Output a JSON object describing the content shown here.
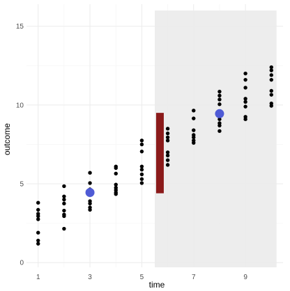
{
  "chart_data": {
    "type": "scatter",
    "xlabel": "time",
    "ylabel": "outcome",
    "xlim": [
      0.55,
      10.45
    ],
    "ylim": [
      -0.3,
      16.4
    ],
    "x_ticks": [
      1,
      3,
      5,
      7,
      9
    ],
    "x_tick_labels": [
      "1",
      "3",
      "5",
      "7",
      "9"
    ],
    "y_ticks": [
      0,
      5,
      10,
      15
    ],
    "y_tick_labels": [
      "0",
      "5",
      "10",
      "15"
    ],
    "grid": true,
    "background_band": {
      "x_from": 5.5,
      "x_to": 10.2,
      "y_from": -0.3,
      "y_to": 16.0,
      "color": "#ebebeb"
    },
    "segment": {
      "x": 5.7,
      "y_from": 4.4,
      "y_to": 9.5,
      "color": "#8b1a1a"
    },
    "highlight_points": [
      {
        "x": 3,
        "y": 4.45,
        "color": "#4f5bd5"
      },
      {
        "x": 8,
        "y": 9.45,
        "color": "#4f5bd5"
      }
    ],
    "point_color": "#000000",
    "points": [
      {
        "x": 1,
        "y": 3.8
      },
      {
        "x": 1,
        "y": 3.35
      },
      {
        "x": 1,
        "y": 3.1
      },
      {
        "x": 1,
        "y": 2.95
      },
      {
        "x": 1,
        "y": 2.75
      },
      {
        "x": 1,
        "y": 1.9
      },
      {
        "x": 1,
        "y": 1.4
      },
      {
        "x": 1,
        "y": 1.2
      },
      {
        "x": 2,
        "y": 4.85
      },
      {
        "x": 2,
        "y": 4.2
      },
      {
        "x": 2,
        "y": 4.0
      },
      {
        "x": 2,
        "y": 3.75
      },
      {
        "x": 2,
        "y": 3.3
      },
      {
        "x": 2,
        "y": 3.05
      },
      {
        "x": 2,
        "y": 2.95
      },
      {
        "x": 2,
        "y": 2.15
      },
      {
        "x": 3,
        "y": 5.7
      },
      {
        "x": 3,
        "y": 5.05
      },
      {
        "x": 3,
        "y": 4.65
      },
      {
        "x": 3,
        "y": 4.3
      },
      {
        "x": 3,
        "y": 3.9
      },
      {
        "x": 3,
        "y": 3.75
      },
      {
        "x": 3,
        "y": 3.5
      },
      {
        "x": 3,
        "y": 3.35
      },
      {
        "x": 4,
        "y": 6.1
      },
      {
        "x": 4,
        "y": 6.0
      },
      {
        "x": 4,
        "y": 5.65
      },
      {
        "x": 4,
        "y": 4.95
      },
      {
        "x": 4,
        "y": 4.75
      },
      {
        "x": 4,
        "y": 4.6
      },
      {
        "x": 4,
        "y": 4.45
      },
      {
        "x": 4,
        "y": 4.35
      },
      {
        "x": 5,
        "y": 7.75
      },
      {
        "x": 5,
        "y": 7.5
      },
      {
        "x": 5,
        "y": 7.05
      },
      {
        "x": 5,
        "y": 6.1
      },
      {
        "x": 5,
        "y": 5.9
      },
      {
        "x": 5,
        "y": 5.6
      },
      {
        "x": 5,
        "y": 5.3
      },
      {
        "x": 5,
        "y": 5.05
      },
      {
        "x": 6,
        "y": 8.5
      },
      {
        "x": 6,
        "y": 8.2
      },
      {
        "x": 6,
        "y": 7.95
      },
      {
        "x": 6,
        "y": 7.75
      },
      {
        "x": 6,
        "y": 7.0
      },
      {
        "x": 6,
        "y": 6.8
      },
      {
        "x": 6,
        "y": 6.5
      },
      {
        "x": 6,
        "y": 6.2
      },
      {
        "x": 7,
        "y": 9.65
      },
      {
        "x": 7,
        "y": 9.15
      },
      {
        "x": 7,
        "y": 8.4
      },
      {
        "x": 7,
        "y": 8.1
      },
      {
        "x": 7,
        "y": 7.95
      },
      {
        "x": 7,
        "y": 7.75
      },
      {
        "x": 7,
        "y": 7.6
      },
      {
        "x": 8,
        "y": 10.85
      },
      {
        "x": 8,
        "y": 10.6
      },
      {
        "x": 8,
        "y": 10.35
      },
      {
        "x": 8,
        "y": 10.05
      },
      {
        "x": 8,
        "y": 9.1
      },
      {
        "x": 8,
        "y": 8.85
      },
      {
        "x": 8,
        "y": 8.7
      },
      {
        "x": 8,
        "y": 8.35
      },
      {
        "x": 9,
        "y": 12.0
      },
      {
        "x": 9,
        "y": 11.6
      },
      {
        "x": 9,
        "y": 11.1
      },
      {
        "x": 9,
        "y": 10.4
      },
      {
        "x": 9,
        "y": 10.2
      },
      {
        "x": 9,
        "y": 9.9
      },
      {
        "x": 9,
        "y": 9.25
      },
      {
        "x": 9,
        "y": 9.1
      },
      {
        "x": 10,
        "y": 12.4
      },
      {
        "x": 10,
        "y": 12.2
      },
      {
        "x": 10,
        "y": 11.9
      },
      {
        "x": 10,
        "y": 11.6
      },
      {
        "x": 10,
        "y": 10.9
      },
      {
        "x": 10,
        "y": 10.65
      },
      {
        "x": 10,
        "y": 10.1
      },
      {
        "x": 10,
        "y": 9.95
      }
    ]
  }
}
